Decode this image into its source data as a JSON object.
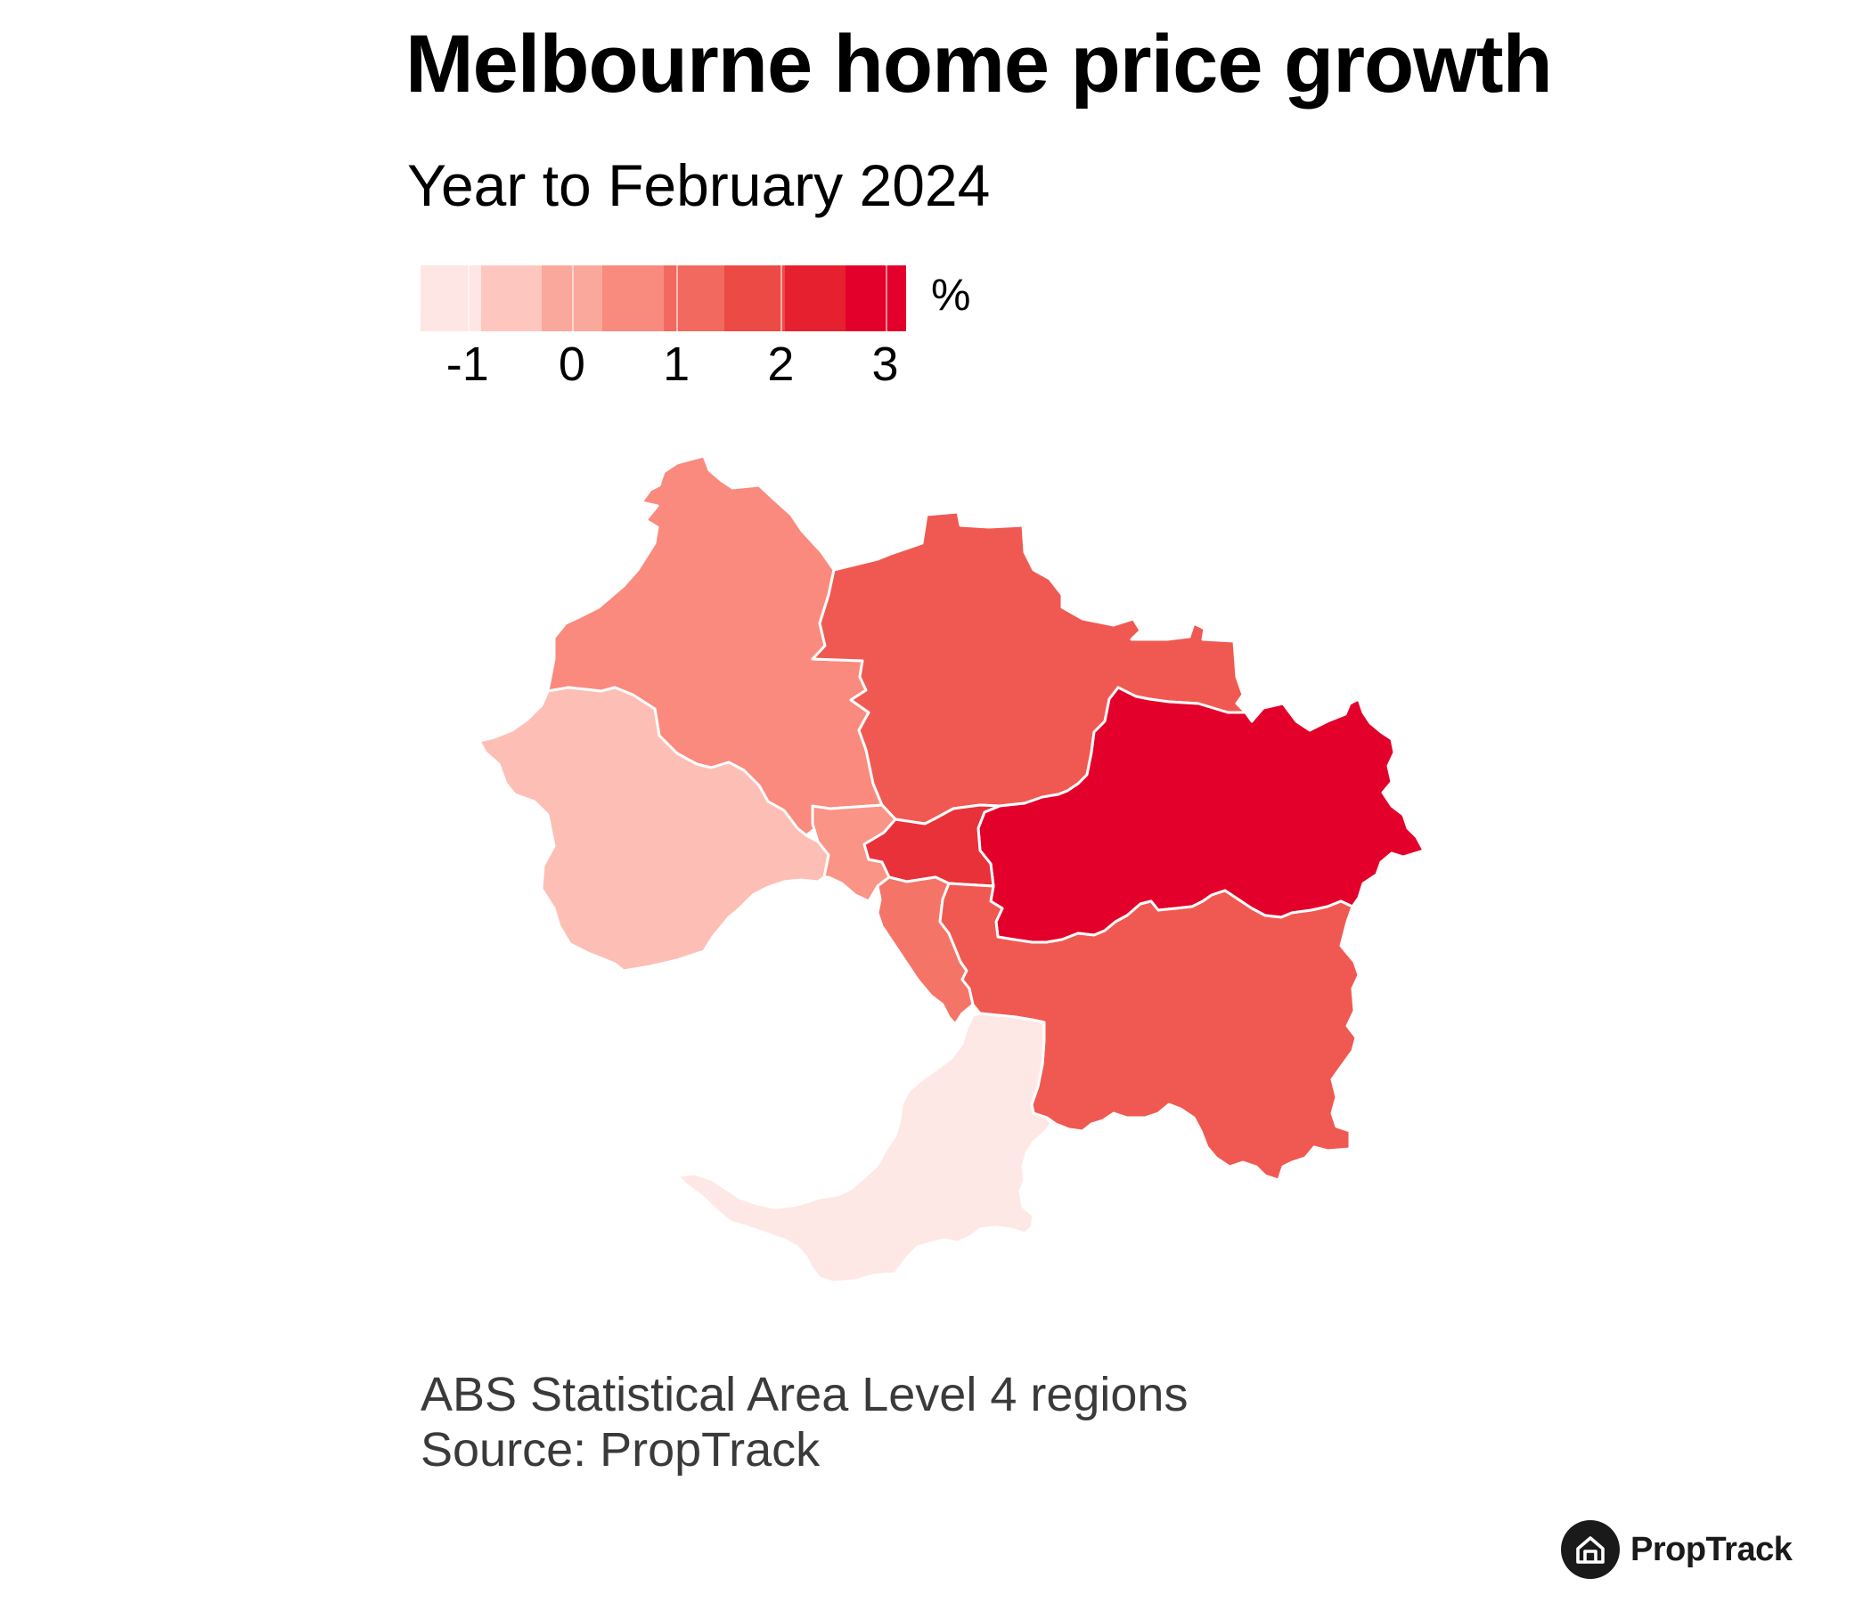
{
  "title": "Melbourne home price growth",
  "subtitle": "Year to February 2024",
  "legend": {
    "unit": "%",
    "ticks": [
      "-1",
      "0",
      "1",
      "2",
      "3"
    ],
    "min_value": -1.45,
    "max_value": 3.2,
    "colors": [
      "#fde6e4",
      "#fdc7c0",
      "#fba89c",
      "#f88a7e",
      "#f26a5f",
      "#ec4a45",
      "#e6202f",
      "#e3002a"
    ]
  },
  "map_data": {
    "regions": [
      {
        "id": "north-west",
        "value": 1.5,
        "color": "#f98a7d"
      },
      {
        "id": "west",
        "value": 0.2,
        "color": "#fdbeb5"
      },
      {
        "id": "north-east",
        "value": 2.5,
        "color": "#f05951"
      },
      {
        "id": "outer-east",
        "value": 3.2,
        "color": "#e3002a"
      },
      {
        "id": "inner-north",
        "value": 1.3,
        "color": "#fa9486"
      },
      {
        "id": "inner",
        "value": 2.9,
        "color": "#e9313a"
      },
      {
        "id": "inner-south",
        "value": 1.9,
        "color": "#f57468"
      },
      {
        "id": "south-east",
        "value": 2.5,
        "color": "#f05951"
      },
      {
        "id": "mornington-peninsula",
        "value": -1.1,
        "color": "#fde8e6"
      }
    ]
  },
  "notes": {
    "line1": "ABS Statistical Area Level 4 regions",
    "line2": "Source: PropTrack"
  },
  "brand": {
    "name": "PropTrack",
    "icon": "house-icon"
  }
}
